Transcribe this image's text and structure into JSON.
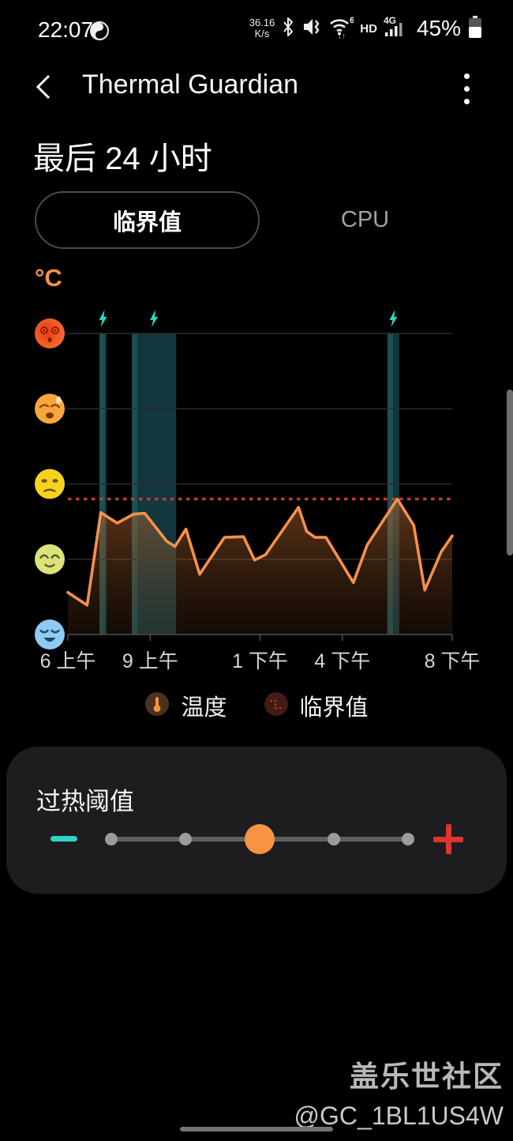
{
  "status_bar": {
    "time": "22:07",
    "network_speed_value": "36.16",
    "network_speed_unit": "K/s",
    "hd_label": "HD",
    "network_type": "4G",
    "battery_percent": "45%",
    "icons": [
      "app-notification-icon",
      "bluetooth-icon",
      "mute-vibrate-icon",
      "wifi6-icon",
      "signal-bars-icon",
      "battery-icon"
    ]
  },
  "header": {
    "title": "Thermal Guardian",
    "back_icon": "chevron-left-icon",
    "menu_icon": "kebab-menu-icon"
  },
  "period_title": "最后 24 小时",
  "tabs": [
    {
      "label": "临界值",
      "selected": true
    },
    {
      "label": "CPU",
      "selected": false
    }
  ],
  "chart": {
    "unit_label": "°C",
    "event_icon": "lightning-bolt-icon",
    "colors": {
      "line": "#f5914b",
      "area_top": "#c26a32",
      "area_bottom": "#5a3418",
      "threshold": "#c43c31",
      "event_bar": "#12373c",
      "event_stripe": "#1d5054",
      "bolt": "#2ed9c3",
      "grid": "#2c2c2c",
      "axis": "#4f4f4f",
      "tick_label": "#d6d6d6"
    }
  },
  "chart_data": {
    "type": "line",
    "title": "最后 24 小时",
    "ylabel": "°C",
    "x_axis": {
      "range_hours": [
        6,
        20
      ],
      "ticks": [
        {
          "hour": 6,
          "label": "6 上午"
        },
        {
          "hour": 9,
          "label": "9 上午"
        },
        {
          "hour": 13,
          "label": "1 下午"
        },
        {
          "hour": 16,
          "label": "4 下午"
        },
        {
          "hour": 20,
          "label": "8 下午"
        }
      ]
    },
    "y_axis": {
      "type": "emoji-levels",
      "range": [
        0,
        4
      ],
      "levels": [
        {
          "value": 0,
          "name": "sleepy-face"
        },
        {
          "value": 1,
          "name": "relieved-face"
        },
        {
          "value": 2,
          "name": "unamused-face"
        },
        {
          "value": 3,
          "name": "sad-sweat-face"
        },
        {
          "value": 4,
          "name": "dizzy-face"
        }
      ]
    },
    "series": [
      {
        "name": "温度",
        "type": "line-area",
        "points": [
          [
            6.0,
            0.56
          ],
          [
            6.7,
            0.39
          ],
          [
            7.2,
            1.62
          ],
          [
            7.8,
            1.48
          ],
          [
            8.4,
            1.6
          ],
          [
            8.8,
            1.61
          ],
          [
            9.6,
            1.24
          ],
          [
            9.9,
            1.17
          ],
          [
            10.3,
            1.4
          ],
          [
            10.8,
            0.8
          ],
          [
            11.7,
            1.29
          ],
          [
            12.4,
            1.3
          ],
          [
            12.8,
            0.99
          ],
          [
            13.2,
            1.06
          ],
          [
            14.4,
            1.69
          ],
          [
            14.7,
            1.37
          ],
          [
            15.0,
            1.29
          ],
          [
            15.4,
            1.29
          ],
          [
            16.4,
            0.69
          ],
          [
            16.9,
            1.19
          ],
          [
            18.0,
            1.8
          ],
          [
            18.6,
            1.45
          ],
          [
            19.0,
            0.59
          ],
          [
            19.6,
            1.1
          ],
          [
            20.0,
            1.31
          ]
        ]
      },
      {
        "name": "临界值",
        "type": "threshold-dotted-line",
        "value": 1.8
      }
    ],
    "events": [
      {
        "name": "thermal-event",
        "start_hour": 7.15,
        "end_hour": 7.41
      },
      {
        "name": "thermal-event",
        "start_hour": 8.33,
        "end_hour": 9.94
      },
      {
        "name": "thermal-event",
        "start_hour": 17.64,
        "end_hour": 18.07
      }
    ]
  },
  "legend": [
    {
      "icon": "thermometer-icon",
      "label": "温度"
    },
    {
      "icon": "dotted-threshold-icon",
      "label": "临界值"
    }
  ],
  "threshold_card": {
    "title": "过热阈值",
    "minus_icon": "minus-icon",
    "plus_icon": "plus-icon",
    "slider": {
      "steps": 5,
      "value_index": 2
    }
  },
  "watermark": {
    "line1": "盖乐世社区",
    "line2": "@GC_1BL1US4W"
  }
}
